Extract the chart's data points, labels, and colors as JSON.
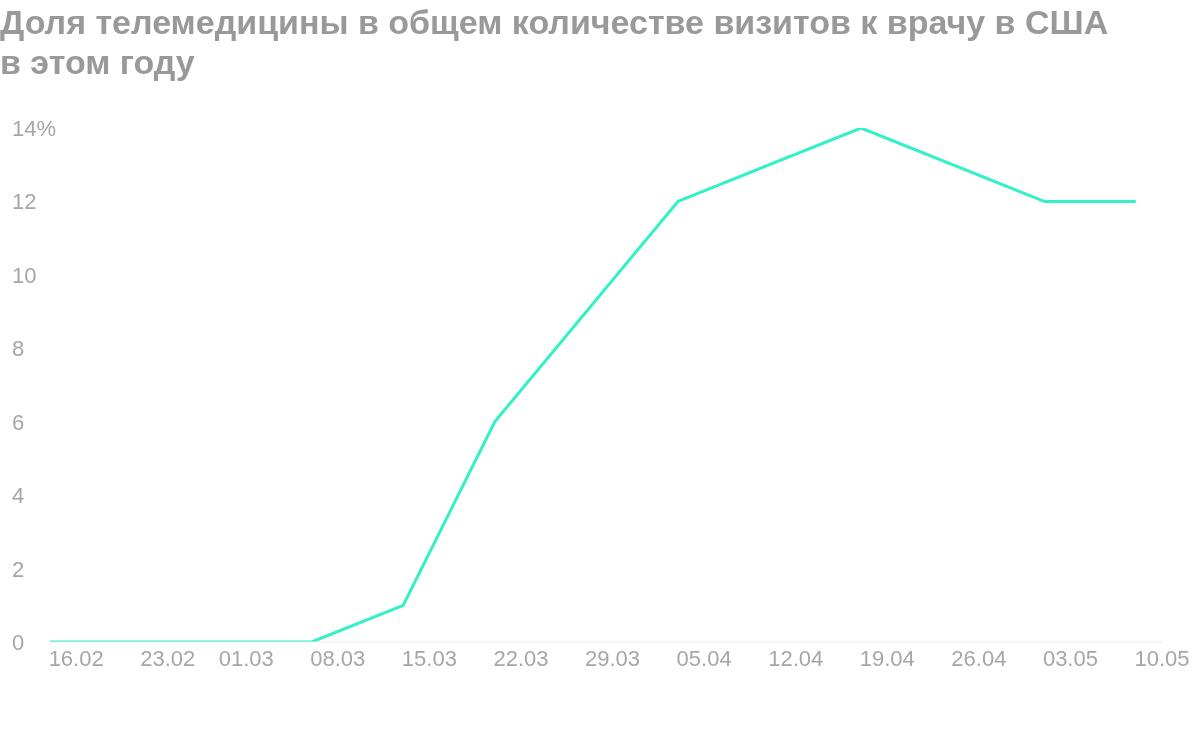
{
  "chart_data": {
    "type": "line",
    "title": "Доля телемедицины в общем количестве визитов к врачу в США в этом году",
    "x": [
      "--02-14",
      "--03-06",
      "--03-13",
      "--03-20",
      "--04-03",
      "--04-17",
      "--05-01",
      "--05-08"
    ],
    "series": [
      {
        "color": "#33f0c8",
        "values": [
          0,
          0,
          1,
          6,
          12,
          14,
          12,
          12
        ]
      }
    ],
    "xticks": [
      {
        "value": "--02-16",
        "label": "16.02"
      },
      {
        "value": "--02-23",
        "label": "23.02"
      },
      {
        "value": "--03-01",
        "label": "01.03"
      },
      {
        "value": "--03-08",
        "label": "08.03"
      },
      {
        "value": "--03-15",
        "label": "15.03"
      },
      {
        "value": "--03-22",
        "label": "22.03"
      },
      {
        "value": "--03-29",
        "label": "29.03"
      },
      {
        "value": "--04-05",
        "label": "05.04"
      },
      {
        "value": "--04-12",
        "label": "12.04"
      },
      {
        "value": "--04-19",
        "label": "19.04"
      },
      {
        "value": "--04-26",
        "label": "26.04"
      },
      {
        "value": "--05-03",
        "label": "03.05"
      },
      {
        "value": "--05-10",
        "label": "10.05"
      }
    ],
    "xlim": [
      "--02-14",
      "--05-10"
    ],
    "ylim": [
      0,
      14
    ],
    "yticks": [
      0,
      2,
      4,
      6,
      8,
      10,
      12,
      {
        "value": 14,
        "label": "14%"
      }
    ],
    "grid": false,
    "legend": false,
    "marker": "none",
    "line_style": "solid"
  }
}
